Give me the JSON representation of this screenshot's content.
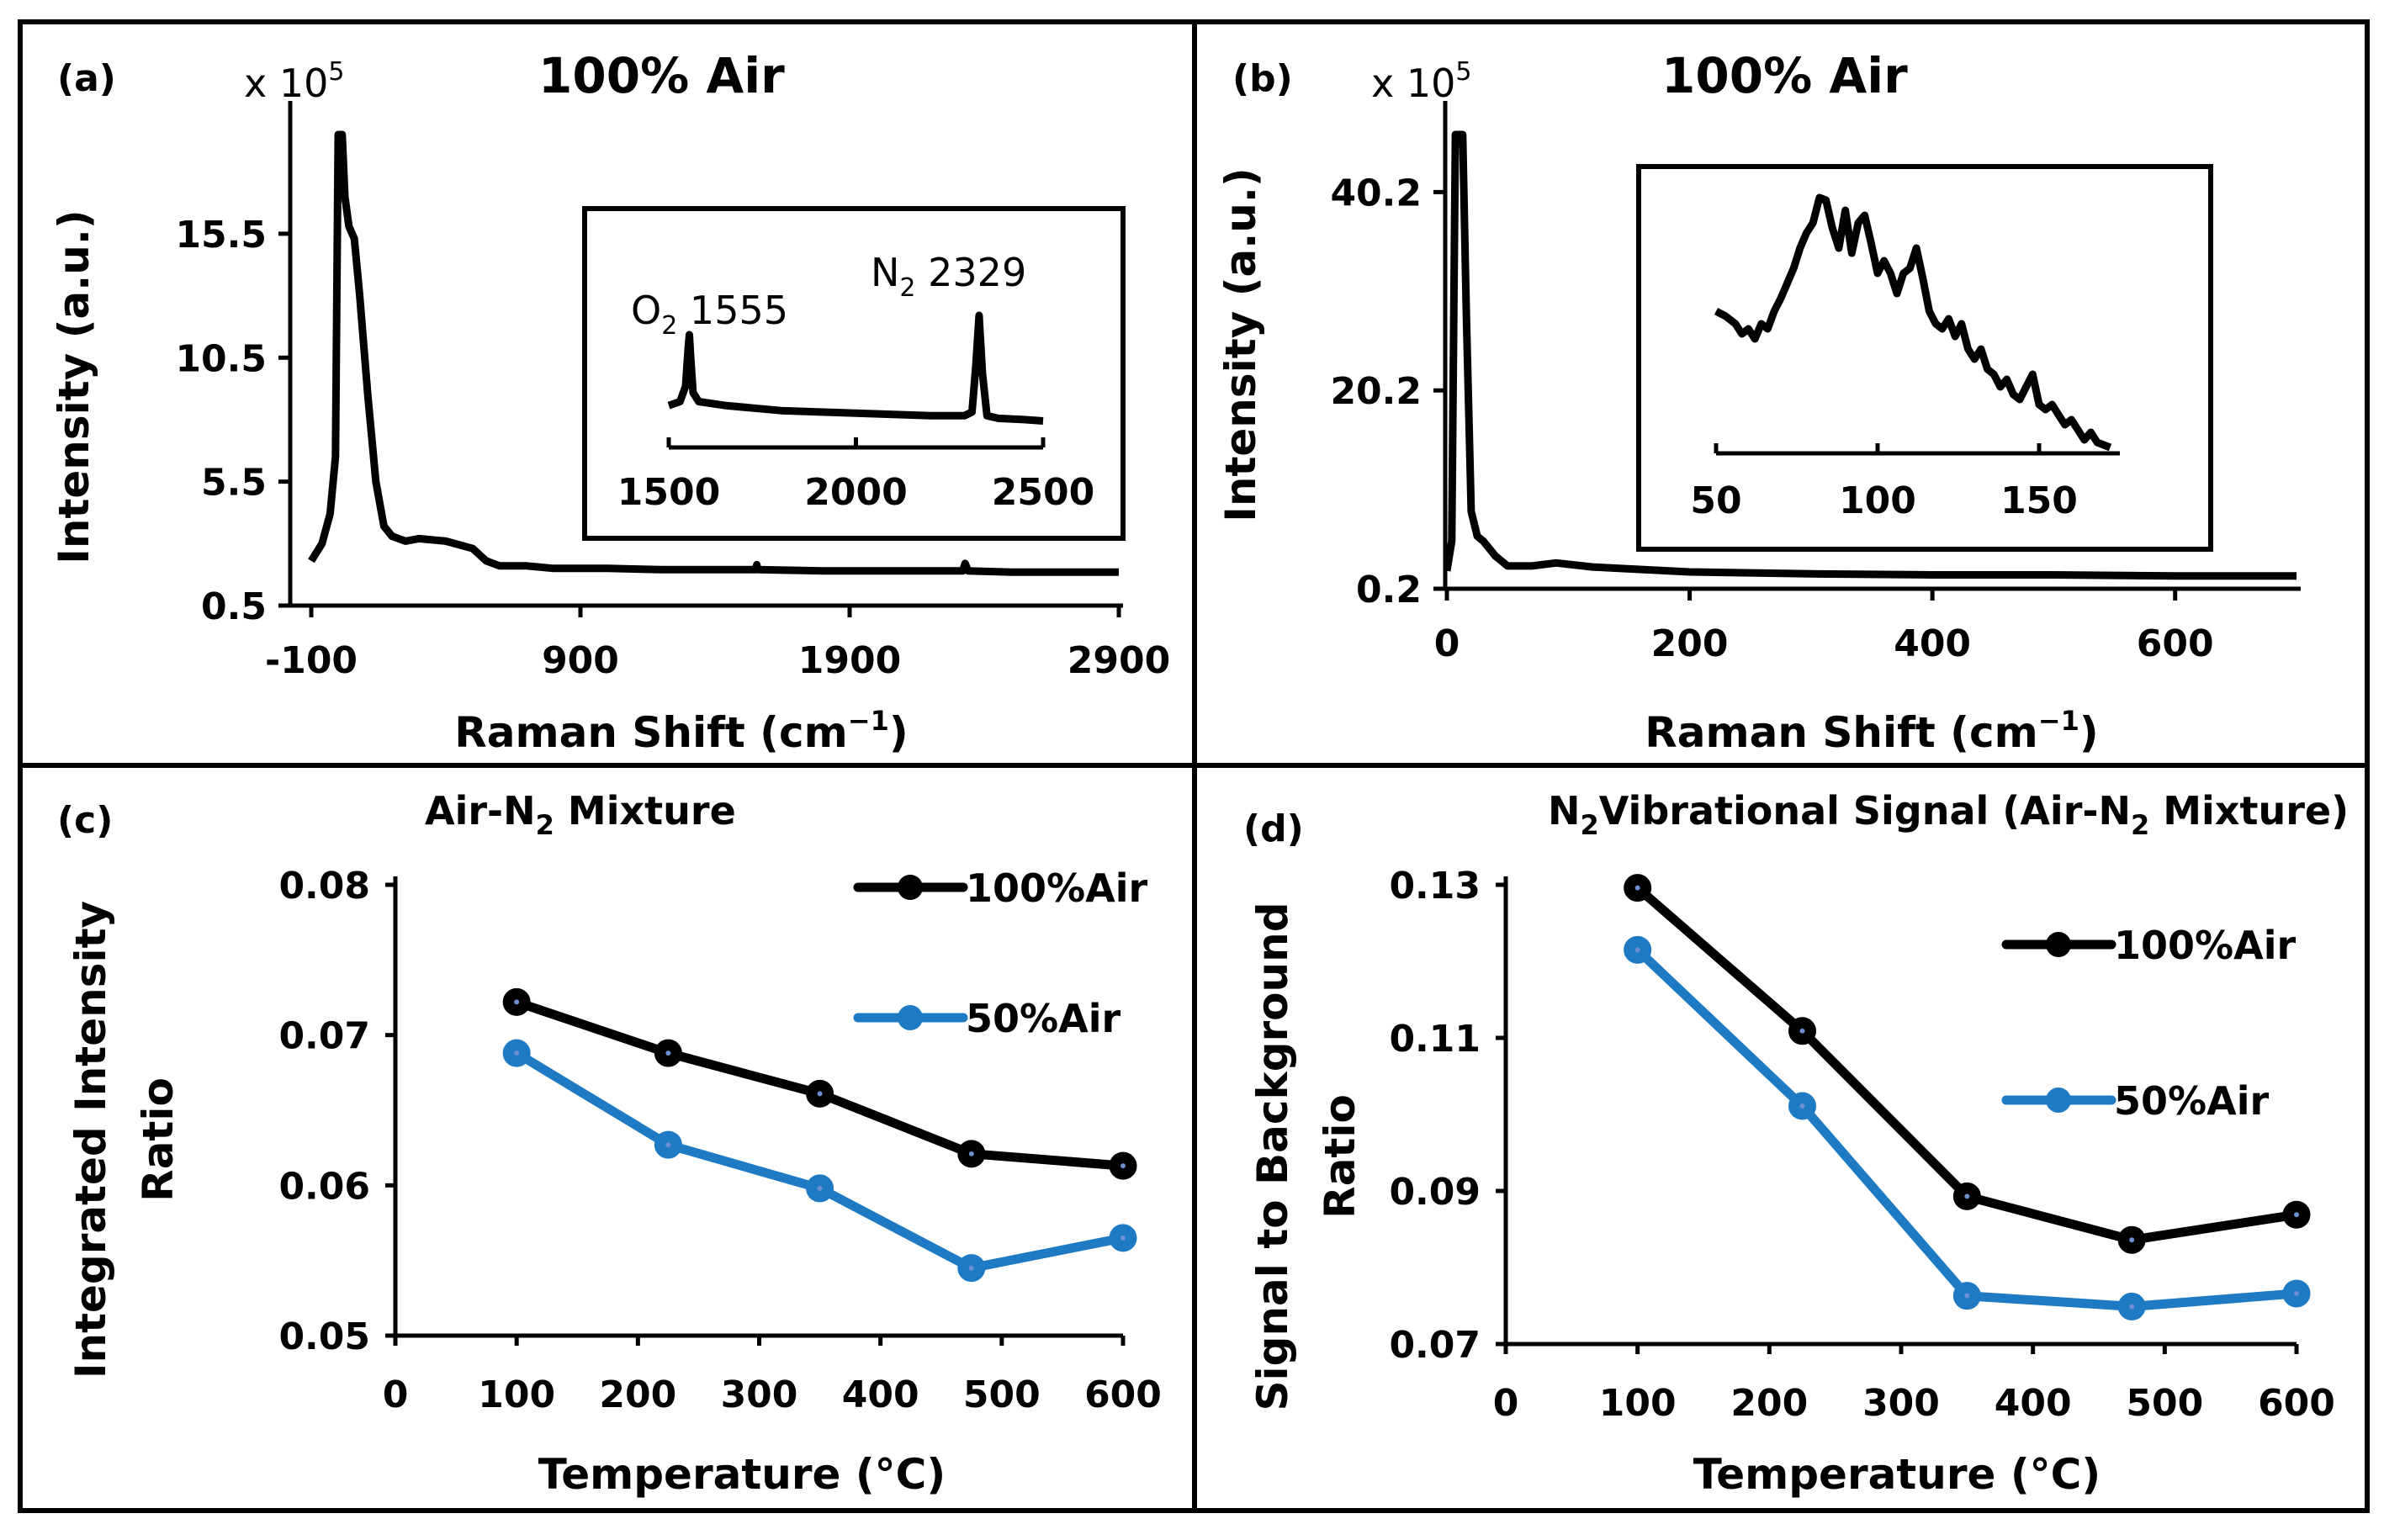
{
  "chart_data": [
    {
      "id": "a",
      "type": "line",
      "panel_label": "(a)",
      "title": "100% Air",
      "multiplier": "x 10",
      "multiplier_exp": "5",
      "xlabel": "Raman Shift (cm",
      "xlabel_sup": "−1",
      "xlabel_end": ")",
      "ylabel": "Intensity (a.u.)",
      "xlim": [
        -100,
        2900
      ],
      "ylim": [
        0.5,
        19.5
      ],
      "x_ticks": [
        "-100",
        "900",
        "1900",
        "2900"
      ],
      "y_ticks": [
        "0.5",
        "5.5",
        "10.5",
        "15.5"
      ],
      "series": [
        {
          "name": "100% Air spectrum",
          "x": [
            -100,
            -60,
            -30,
            -10,
            0,
            8,
            15,
            25,
            40,
            60,
            80,
            110,
            140,
            170,
            200,
            250,
            300,
            400,
            500,
            550,
            600,
            700,
            800,
            1000,
            1200,
            1400,
            1550,
            1555,
            1560,
            1800,
            2000,
            2200,
            2320,
            2329,
            2340,
            2500,
            2700,
            2900
          ],
          "y": [
            2.3,
            3.0,
            4.2,
            6.5,
            19.5,
            19.5,
            19.5,
            17,
            15.8,
            15.3,
            13,
            9,
            5.5,
            3.7,
            3.3,
            3.1,
            3.2,
            3.1,
            2.8,
            2.3,
            2.1,
            2.1,
            2.0,
            2.0,
            1.95,
            1.95,
            1.95,
            2.15,
            1.95,
            1.9,
            1.9,
            1.9,
            1.9,
            2.2,
            1.9,
            1.85,
            1.85,
            1.85
          ]
        }
      ],
      "inset": {
        "xlim": [
          1500,
          2500
        ],
        "x_ticks": [
          "1500",
          "2000",
          "2500"
        ],
        "annotations": [
          {
            "species": "O",
            "sub": "2",
            "value": "1555"
          },
          {
            "species": "N",
            "sub": "2",
            "value": "2329"
          }
        ],
        "x": [
          1500,
          1530,
          1545,
          1552,
          1555,
          1558,
          1565,
          1580,
          1650,
          1800,
          2000,
          2200,
          2290,
          2310,
          2320,
          2329,
          2338,
          2350,
          2380,
          2450,
          2500
        ],
        "y": [
          0.3,
          0.33,
          0.45,
          0.75,
          0.85,
          0.7,
          0.4,
          0.33,
          0.3,
          0.26,
          0.24,
          0.22,
          0.22,
          0.25,
          0.6,
          1.0,
          0.55,
          0.22,
          0.2,
          0.19,
          0.18
        ]
      }
    },
    {
      "id": "b",
      "type": "line",
      "panel_label": "(b)",
      "title": "100% Air",
      "multiplier": "x 10",
      "multiplier_exp": "5",
      "xlabel": "Raman Shift (cm",
      "xlabel_sup": "−1",
      "xlabel_end": ")",
      "ylabel": "Intensity (a.u.)",
      "xlim": [
        0,
        700
      ],
      "ylim": [
        0.2,
        46
      ],
      "x_ticks": [
        "0",
        "200",
        "400",
        "600"
      ],
      "y_ticks": [
        "0.2",
        "20.2",
        "40.2"
      ],
      "series": [
        {
          "name": "100% Air low-frequency spectrum",
          "x": [
            0,
            4,
            7,
            10,
            13,
            16,
            20,
            25,
            30,
            40,
            50,
            70,
            90,
            120,
            200,
            300,
            400,
            500,
            600,
            700
          ],
          "y": [
            2.0,
            5,
            46,
            46,
            46,
            28,
            8,
            5.5,
            5,
            3.5,
            2.5,
            2.5,
            2.8,
            2.4,
            1.9,
            1.7,
            1.6,
            1.6,
            1.5,
            1.5
          ]
        }
      ],
      "inset": {
        "xlim": [
          50,
          175
        ],
        "x_ticks": [
          "50",
          "100",
          "150"
        ],
        "x": [
          50,
          53,
          56,
          58,
          60,
          62,
          64,
          66,
          68,
          70,
          72,
          74,
          76,
          78,
          80,
          82,
          84,
          86,
          88,
          90,
          92,
          94,
          96,
          98,
          100,
          102,
          104,
          106,
          108,
          110,
          112,
          114,
          116,
          118,
          120,
          122,
          124,
          126,
          128,
          130,
          132,
          134,
          136,
          138,
          140,
          142,
          144,
          146,
          148,
          150,
          152,
          154,
          156,
          158,
          160,
          162,
          164,
          166,
          168,
          170,
          172
        ],
        "y": [
          0.55,
          0.53,
          0.5,
          0.46,
          0.48,
          0.44,
          0.5,
          0.48,
          0.55,
          0.6,
          0.66,
          0.72,
          0.8,
          0.86,
          0.9,
          1.0,
          0.99,
          0.88,
          0.8,
          0.95,
          0.78,
          0.9,
          0.93,
          0.82,
          0.7,
          0.75,
          0.7,
          0.62,
          0.7,
          0.72,
          0.8,
          0.68,
          0.55,
          0.5,
          0.48,
          0.52,
          0.45,
          0.5,
          0.4,
          0.36,
          0.4,
          0.32,
          0.3,
          0.25,
          0.28,
          0.22,
          0.2,
          0.25,
          0.3,
          0.18,
          0.16,
          0.18,
          0.14,
          0.1,
          0.12,
          0.08,
          0.04,
          0.07,
          0.03,
          0.02,
          0.01
        ]
      }
    },
    {
      "id": "c",
      "type": "line",
      "panel_label": "(c)",
      "title": "Air-N",
      "title_sub": "2",
      "title_end": " Mixture",
      "xlabel": "Temperature (°C)",
      "ylabel_lines": [
        "Integrated Intensity",
        "Ratio"
      ],
      "xlim": [
        0,
        600
      ],
      "ylim": [
        0.05,
        0.08
      ],
      "x_ticks": [
        "0",
        "100",
        "200",
        "300",
        "400",
        "500",
        "600"
      ],
      "y_ticks": [
        "0.05",
        "0.06",
        "0.07",
        "0.08"
      ],
      "legend_position": "top-right",
      "x": [
        100,
        225,
        350,
        475,
        600
      ],
      "series": [
        {
          "name": "100%Air",
          "color": "#000000",
          "values": [
            0.0722,
            0.0688,
            0.0661,
            0.0621,
            0.0613
          ]
        },
        {
          "name": "50%Air",
          "color": "#1f7ac4",
          "values": [
            0.0688,
            0.0627,
            0.0598,
            0.0545,
            0.0565
          ]
        }
      ]
    },
    {
      "id": "d",
      "type": "line",
      "panel_label": "(d)",
      "title": "N",
      "title_sub": "2",
      "title_end": "Vibrational Signal (Air-N",
      "title_sub2": "2",
      "title_end2": " Mixture)",
      "xlabel": "Temperature (°C)",
      "ylabel_lines": [
        "Signal to Background",
        "Ratio"
      ],
      "xlim": [
        0,
        600
      ],
      "ylim": [
        0.07,
        0.13
      ],
      "x_ticks": [
        "0",
        "100",
        "200",
        "300",
        "400",
        "500",
        "600"
      ],
      "y_ticks": [
        "0.07",
        "0.09",
        "0.11",
        "0.13"
      ],
      "legend_position": "top-right",
      "x": [
        100,
        225,
        350,
        475,
        600
      ],
      "series": [
        {
          "name": "100%Air",
          "color": "#000000",
          "values": [
            0.1296,
            0.1109,
            0.0893,
            0.0836,
            0.0869
          ]
        },
        {
          "name": "50%Air",
          "color": "#1f7ac4",
          "values": [
            0.1215,
            0.1011,
            0.0763,
            0.0749,
            0.0766
          ]
        }
      ]
    }
  ]
}
